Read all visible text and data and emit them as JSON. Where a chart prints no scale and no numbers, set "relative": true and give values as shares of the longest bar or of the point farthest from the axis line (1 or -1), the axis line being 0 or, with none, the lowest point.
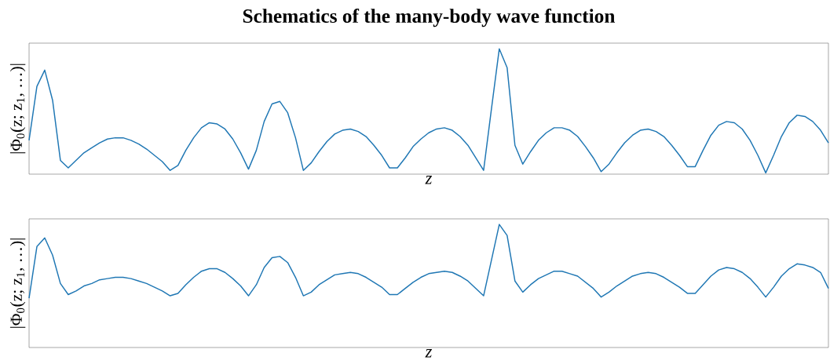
{
  "chart_data": [
    {
      "type": "line",
      "title": "Schematics of the many-body wave function",
      "xlabel": "z",
      "ylabel": "|Φ$_{0}$(z; z$_{1}$, …)|",
      "relative": true,
      "categories": [
        null,
        null,
        null,
        null,
        null,
        null,
        null,
        null,
        null,
        null,
        null,
        null,
        null,
        null,
        null,
        null,
        null,
        null,
        null,
        null,
        null,
        null,
        null,
        null,
        null,
        null,
        null,
        null,
        null,
        null,
        null,
        null,
        null,
        null,
        null,
        null,
        null,
        null,
        null,
        null,
        null,
        null,
        null,
        null,
        null,
        null,
        null,
        null,
        null,
        null,
        null,
        null,
        null,
        null,
        null,
        null,
        null,
        null,
        null,
        null,
        null,
        null,
        null,
        null,
        null,
        null,
        null,
        null,
        null,
        null,
        null,
        null,
        null,
        null,
        null,
        null,
        null,
        null,
        null,
        null,
        null,
        null,
        null,
        null,
        null,
        null,
        null,
        null,
        null,
        null,
        null,
        null,
        null,
        null,
        null,
        null,
        null,
        null,
        null,
        null,
        null,
        null,
        null
      ],
      "series": [
        {
          "color": "#1f77b4",
          "values": [
            0.27,
            0.7,
            0.83,
            0.59,
            0.11,
            0.05,
            0.11,
            0.17,
            0.21,
            0.25,
            0.28,
            0.29,
            0.29,
            0.27,
            0.24,
            0.2,
            0.15,
            0.1,
            0.03,
            0.07,
            0.19,
            0.29,
            0.37,
            0.41,
            0.4,
            0.36,
            0.28,
            0.17,
            0.04,
            0.19,
            0.42,
            0.56,
            0.58,
            0.49,
            0.29,
            0.03,
            0.09,
            0.18,
            0.26,
            0.32,
            0.35,
            0.36,
            0.34,
            0.3,
            0.23,
            0.15,
            0.05,
            0.05,
            0.13,
            0.22,
            0.28,
            0.33,
            0.36,
            0.37,
            0.35,
            0.3,
            0.23,
            0.13,
            0.03,
            0.52,
            1.0,
            0.85,
            0.23,
            0.08,
            0.18,
            0.27,
            0.33,
            0.37,
            0.37,
            0.35,
            0.3,
            0.22,
            0.13,
            0.02,
            0.08,
            0.17,
            0.25,
            0.31,
            0.35,
            0.36,
            0.34,
            0.3,
            0.23,
            0.15,
            0.06,
            0.06,
            0.19,
            0.31,
            0.39,
            0.42,
            0.41,
            0.36,
            0.27,
            0.15,
            0.01,
            0.15,
            0.3,
            0.41,
            0.47,
            0.46,
            0.42,
            0.35,
            0.25
          ]
        }
      ]
    },
    {
      "type": "line",
      "xlabel": "z",
      "ylabel": "|Φ$_{0}$(z; z$_{1}$, …)|",
      "relative": true,
      "categories": [
        null,
        null,
        null,
        null,
        null,
        null,
        null,
        null,
        null,
        null,
        null,
        null,
        null,
        null,
        null,
        null,
        null,
        null,
        null,
        null,
        null,
        null,
        null,
        null,
        null,
        null,
        null,
        null,
        null,
        null,
        null,
        null,
        null,
        null,
        null,
        null,
        null,
        null,
        null,
        null,
        null,
        null,
        null,
        null,
        null,
        null,
        null,
        null,
        null,
        null,
        null,
        null,
        null,
        null,
        null,
        null,
        null,
        null,
        null,
        null,
        null,
        null,
        null,
        null,
        null,
        null,
        null,
        null,
        null,
        null,
        null,
        null,
        null,
        null,
        null,
        null,
        null,
        null,
        null,
        null,
        null,
        null,
        null,
        null,
        null,
        null,
        null,
        null,
        null,
        null,
        null,
        null,
        null,
        null,
        null,
        null,
        null,
        null,
        null,
        null,
        null,
        null,
        null
      ],
      "series": [
        {
          "color": "#1f77b4",
          "values": [
            0.4,
            0.82,
            0.89,
            0.75,
            0.52,
            0.43,
            0.46,
            0.5,
            0.52,
            0.55,
            0.56,
            0.57,
            0.57,
            0.56,
            0.54,
            0.52,
            0.49,
            0.46,
            0.42,
            0.44,
            0.51,
            0.57,
            0.62,
            0.64,
            0.64,
            0.61,
            0.56,
            0.5,
            0.42,
            0.51,
            0.65,
            0.73,
            0.74,
            0.69,
            0.57,
            0.42,
            0.45,
            0.51,
            0.55,
            0.59,
            0.6,
            0.61,
            0.6,
            0.57,
            0.53,
            0.49,
            0.43,
            0.43,
            0.48,
            0.53,
            0.57,
            0.6,
            0.61,
            0.62,
            0.61,
            0.58,
            0.54,
            0.48,
            0.42,
            0.71,
            1.0,
            0.91,
            0.54,
            0.45,
            0.51,
            0.56,
            0.59,
            0.62,
            0.62,
            0.6,
            0.58,
            0.53,
            0.48,
            0.41,
            0.45,
            0.5,
            0.54,
            0.58,
            0.6,
            0.61,
            0.6,
            0.57,
            0.53,
            0.49,
            0.44,
            0.44,
            0.51,
            0.58,
            0.63,
            0.65,
            0.64,
            0.61,
            0.56,
            0.49,
            0.41,
            0.49,
            0.58,
            0.64,
            0.68,
            0.67,
            0.65,
            0.61,
            0.48
          ]
        }
      ]
    }
  ]
}
